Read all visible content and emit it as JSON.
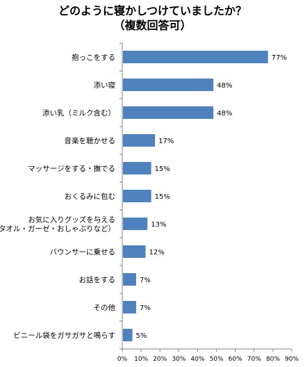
{
  "chart_data": {
    "type": "bar",
    "orientation": "horizontal",
    "title": "どのように寝かしつけていましたか？",
    "subtitle": "（複数回答可）",
    "categories": [
      "抱っこをする",
      "添い寝",
      "添い乳（ミルク含む）",
      "音楽を聴かせる",
      "マッサージをする・撫でる",
      "おくるみに包む",
      "お気に入りグッズを与える（タオル・ガーゼ・おしゃぶりなど）",
      "バウンサーに乗せる",
      "お話をする",
      "その他",
      "ビニール袋をガサガサと鳴らす"
    ],
    "category_lines": [
      [
        "抱っこをする"
      ],
      [
        "添い寝"
      ],
      [
        "添い乳（ミルク含む）"
      ],
      [
        "音楽を聴かせる"
      ],
      [
        "マッサージをする・撫でる"
      ],
      [
        "おくるみに包む"
      ],
      [
        "お気に入りグッズを与える",
        "（タオル・ガーゼ・おしゃぶりなど）"
      ],
      [
        "バウンサーに乗せる"
      ],
      [
        "お話をする"
      ],
      [
        "その他"
      ],
      [
        "ビニール袋をガサガサと鳴らす"
      ]
    ],
    "values": [
      77,
      48,
      48,
      17,
      15,
      15,
      13,
      12,
      7,
      7,
      5
    ],
    "value_labels": [
      "77%",
      "48%",
      "48%",
      "17%",
      "15%",
      "15%",
      "13%",
      "12%",
      "7%",
      "7%",
      "5%"
    ],
    "xlim": [
      0,
      90
    ],
    "xticks": [
      "0%",
      "10%",
      "20%",
      "30%",
      "40%",
      "50%",
      "60%",
      "70%",
      "80%",
      "90%"
    ],
    "grid": false,
    "legend": "none",
    "bar_color": "#4f81bd"
  }
}
